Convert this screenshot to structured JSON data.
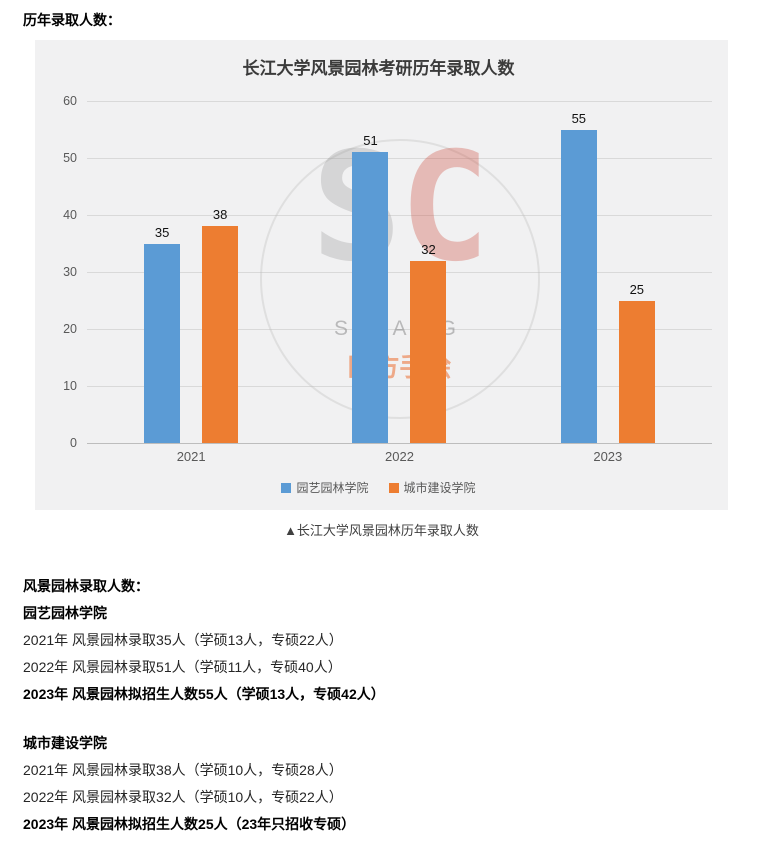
{
  "page": {
    "heading": "历年录取人数：",
    "caption": "▲长江大学风景园林历年录取人数"
  },
  "chart_data": {
    "type": "bar",
    "title": "长江大学风景园林考研历年录取人数",
    "categories": [
      "2021",
      "2022",
      "2023"
    ],
    "series": [
      {
        "name": "园艺园林学院",
        "color": "#5B9BD5",
        "values": [
          35,
          51,
          55
        ]
      },
      {
        "name": "城市建设学院",
        "color": "#ED7D31",
        "values": [
          38,
          32,
          25
        ]
      }
    ],
    "ylim": [
      0,
      60
    ],
    "yticks": [
      0,
      10,
      20,
      30,
      40,
      50,
      60
    ],
    "grid": true,
    "legend_position": "bottom"
  },
  "watermark": {
    "logo_left": "S",
    "logo_right": "C",
    "line1": "SIFANG",
    "line2": "四方手绘"
  },
  "sections": {
    "heading": "风景园林录取人数：",
    "groups": [
      {
        "title": "园艺园林学院",
        "lines": [
          {
            "text": "2021年 风景园林录取35人（学硕13人，专硕22人）",
            "bold": false
          },
          {
            "text": "2022年 风景园林录取51人（学硕11人，专硕40人）",
            "bold": false
          },
          {
            "text": "2023年 风景园林拟招生人数55人（学硕13人，专硕42人）",
            "bold": true
          }
        ]
      },
      {
        "title": "城市建设学院",
        "lines": [
          {
            "text": "2021年 风景园林录取38人（学硕10人，专硕28人）",
            "bold": false
          },
          {
            "text": "2022年 风景园林录取32人（学硕10人，专硕22人）",
            "bold": false
          },
          {
            "text": "2023年 风景园林拟招生人数25人（23年只招收专硕）",
            "bold": true
          }
        ]
      }
    ]
  }
}
